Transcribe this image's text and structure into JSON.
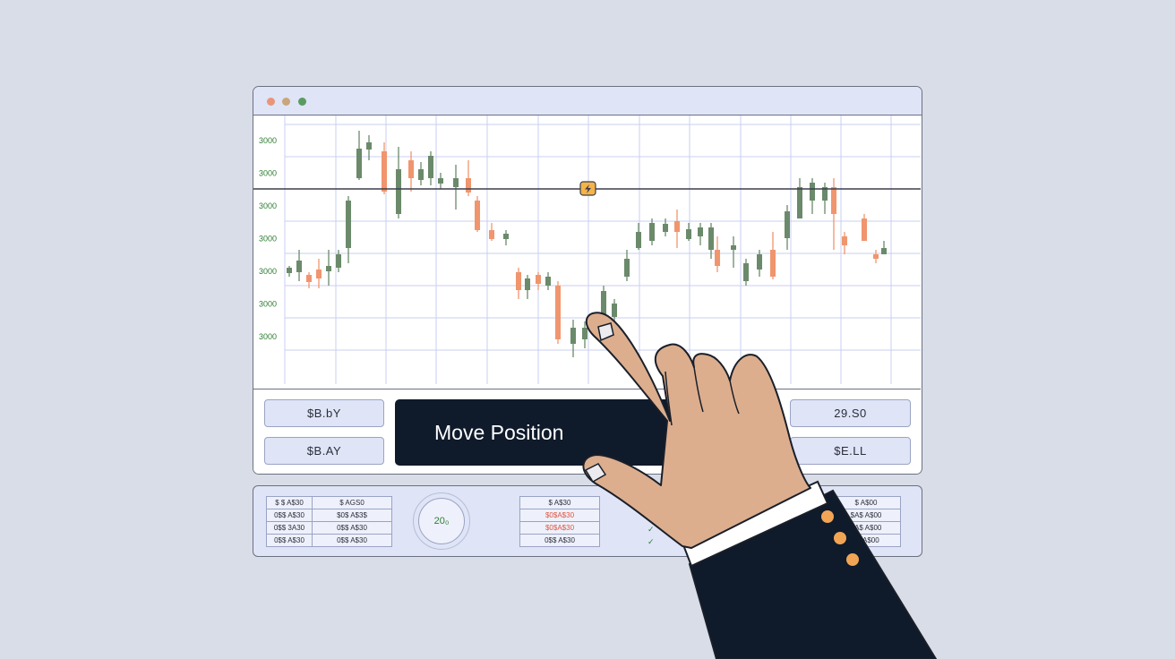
{
  "window": {
    "traffic_lights": [
      "#e8957a",
      "#c9a77a",
      "#5a9b61"
    ]
  },
  "chart": {
    "y_axis_labels": [
      "3000",
      "3000",
      "3000",
      "3000",
      "3000",
      "3000",
      "3000"
    ],
    "colors": {
      "up": "#6b8a6b",
      "down": "#f0956e",
      "grid": "#c9cff0",
      "axis_text": "#2e7d32"
    },
    "marker_icon": "lightning-icon"
  },
  "trade_panel": {
    "buy_label": "$B.bY",
    "buy_ask_label": "$B.AY",
    "move_position_label": "Move Position",
    "price_label": "29.S0",
    "sell_label": "$E.LL"
  },
  "orders": {
    "left_table": [
      [
        "$ $ A$30",
        "$ AGS0"
      ],
      [
        "0$$ A$30",
        "$0$ A$3$"
      ],
      [
        "0$$ 3A30",
        "0$$ A$30"
      ],
      [
        "0$$ A$30",
        "0$$ A$30"
      ]
    ],
    "gauge_value": "20₀",
    "middle_table": [
      "$ A$30",
      "$0$A$30",
      "$0$A$30",
      "0$$ A$30"
    ],
    "status_marks": [
      "✓",
      "✓"
    ],
    "right_table": [
      "$ A$00",
      "$A$ A$00",
      "$A$ A$00",
      "$$ A$00"
    ]
  }
}
